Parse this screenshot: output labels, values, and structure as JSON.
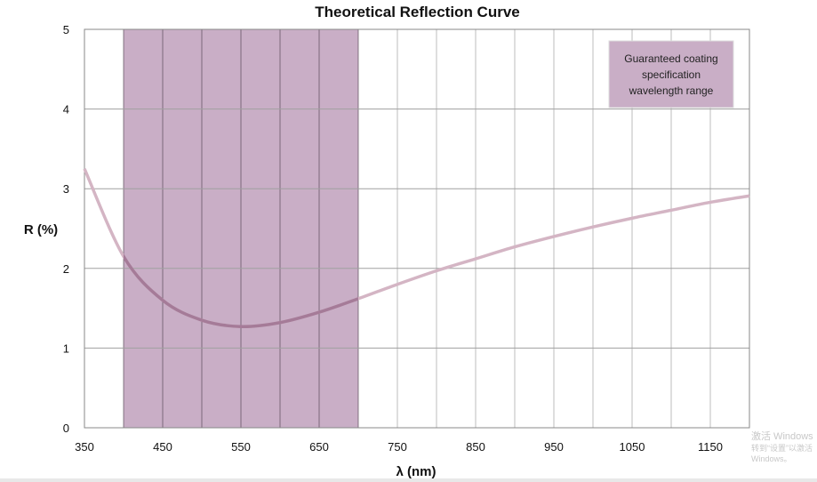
{
  "chart_data": {
    "type": "line",
    "title": "Theoretical Reflection Curve",
    "xlabel": "λ (nm)",
    "ylabel": "R (%)",
    "xlim": [
      350,
      1200
    ],
    "ylim": [
      0,
      5
    ],
    "grid": true,
    "x_ticks": [
      350,
      450,
      550,
      650,
      750,
      850,
      950,
      1050,
      1150
    ],
    "y_ticks": [
      0,
      1,
      2,
      3,
      4,
      5
    ],
    "x": [
      350,
      400,
      450,
      500,
      550,
      600,
      650,
      700,
      750,
      800,
      850,
      900,
      950,
      1000,
      1050,
      1100,
      1150,
      1200
    ],
    "values": [
      3.25,
      2.15,
      1.6,
      1.35,
      1.27,
      1.32,
      1.45,
      1.62,
      1.8,
      1.97,
      2.12,
      2.27,
      2.4,
      2.52,
      2.63,
      2.73,
      2.83,
      2.91
    ],
    "highlight_range": [
      400,
      700
    ],
    "annotation": "Guaranteed coating specification wavelength range",
    "annotation_lines": [
      "Guaranteed coating",
      "specification",
      "wavelength range"
    ],
    "legend_placement": "top-right",
    "colors": {
      "curve": "#d4b5c4",
      "highlight": "#c9aec6",
      "grid": "#a0a0a0"
    }
  },
  "watermark": {
    "line1": "激活 Windows",
    "line2": "转到“设置”以激活 Windows。"
  }
}
